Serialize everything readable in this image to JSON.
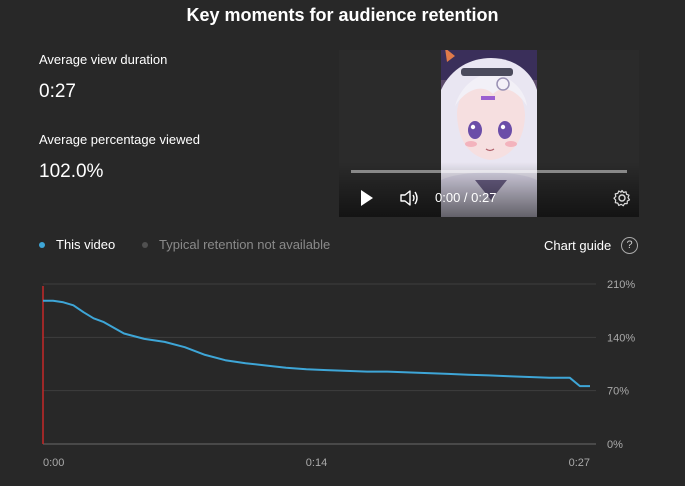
{
  "title": "Key moments for audience retention",
  "metrics": {
    "avg_view_duration_label": "Average view duration",
    "avg_view_duration_value": "0:27",
    "avg_pct_viewed_label": "Average percentage viewed",
    "avg_pct_viewed_value": "102.0%"
  },
  "player": {
    "time": "0:00 / 0:27",
    "icons": [
      "play-icon",
      "volume-icon",
      "settings-icon"
    ]
  },
  "legend": {
    "this_video": "This video",
    "typical": "Typical retention not available",
    "this_video_color": "#3ea6d7",
    "typical_color": "#505050"
  },
  "chart_guide": "Chart guide",
  "help_symbol": "?",
  "chart_data": {
    "type": "line",
    "x_tick_labels": [
      "0:00",
      "0:14",
      "0:27"
    ],
    "y_tick_labels": [
      "210%",
      "140%",
      "70%",
      "0%"
    ],
    "x": [
      0,
      0.5,
      1,
      1.5,
      2,
      2.5,
      3,
      4,
      5,
      6,
      7,
      8,
      9,
      10,
      11,
      12,
      13,
      14,
      15,
      16,
      17,
      18,
      19,
      20,
      21,
      22,
      23,
      24,
      25,
      26,
      26.5,
      27
    ],
    "series": [
      {
        "values": [
          188,
          188,
          186,
          182,
          173,
          165,
          160,
          145,
          138,
          134,
          127,
          117,
          110,
          106,
          103,
          100,
          98,
          97,
          96,
          95,
          95,
          94,
          93,
          92,
          91,
          90,
          89,
          88,
          87,
          87,
          76,
          76
        ]
      }
    ],
    "xlim": [
      0,
      27
    ],
    "ylim": [
      0,
      210
    ],
    "grid": true,
    "line_color": "#3ea6d7",
    "marker_color": "#c62828"
  }
}
